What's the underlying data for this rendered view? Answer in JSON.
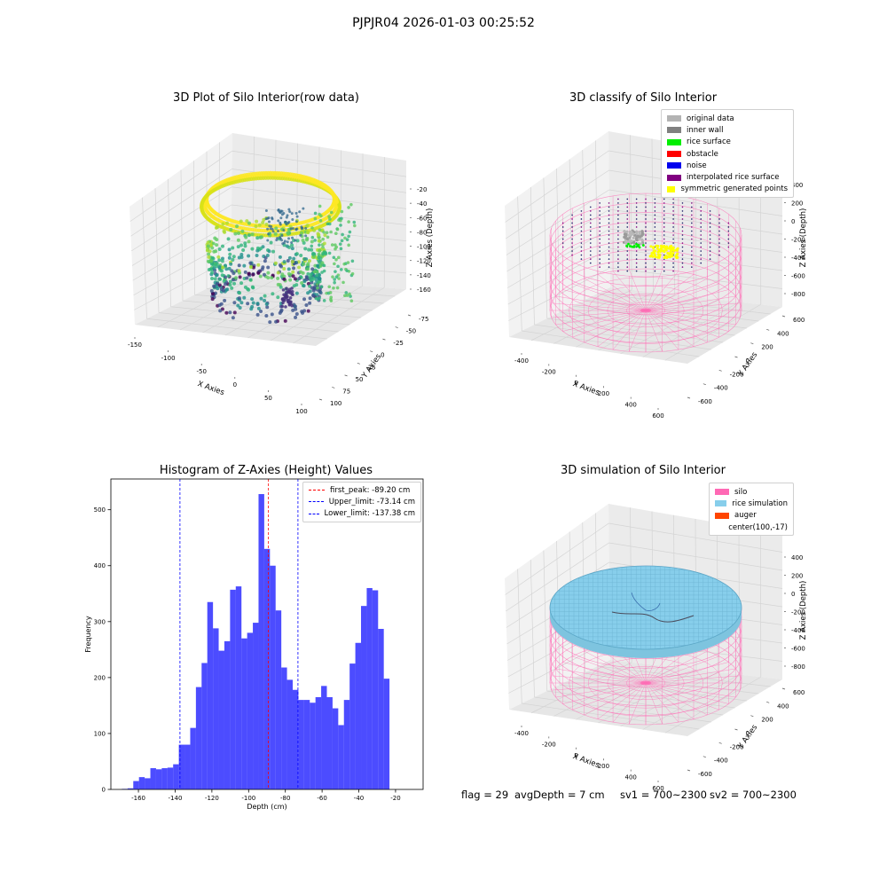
{
  "suptitle": "PJPJR04 2026-01-03 00:25:52",
  "panels": {
    "raw": {
      "title": "3D Plot of Silo Interior(row data)",
      "xlabel": "X Axies",
      "ylabel": "Y Axies",
      "zlabel": "Z Axies (Depth)",
      "xticks": [
        "-150",
        "-100",
        "-50",
        "0",
        "50",
        "100"
      ],
      "yticks": [
        "-75",
        "-50",
        "-25",
        "0",
        "25",
        "50",
        "75",
        "100"
      ],
      "zticks": [
        "-20",
        "-40",
        "-60",
        "-80",
        "-100",
        "-120",
        "-140",
        "-160"
      ]
    },
    "classify": {
      "title": "3D classify of Silo Interior",
      "xlabel": "X Axies",
      "ylabel": "Y Axies",
      "zlabel": "Z Axies (Depth)",
      "xticks": [
        "-400",
        "-200",
        "0",
        "200",
        "400",
        "600"
      ],
      "yticks": [
        "-600",
        "-400",
        "-200",
        "0",
        "200",
        "400",
        "600"
      ],
      "zticks": [
        "400",
        "200",
        "0",
        "-200",
        "-400",
        "-600",
        "-800"
      ],
      "legend": [
        {
          "label": "original data",
          "color": "#b3b3b3"
        },
        {
          "label": "inner wall",
          "color": "#808080"
        },
        {
          "label": "rice surface",
          "color": "#00ee00"
        },
        {
          "label": "obstacle",
          "color": "#ff0000"
        },
        {
          "label": "noise",
          "color": "#0000ee"
        },
        {
          "label": "interpolated rice surface",
          "color": "#800080"
        },
        {
          "label": "symmetric generated points",
          "color": "#ffff00"
        }
      ]
    },
    "simulation": {
      "title": "3D simulation of Silo Interior",
      "xlabel": "X Axies",
      "ylabel": "Y Axies",
      "zlabel": "Z Axies (Depth)",
      "xticks": [
        "-400",
        "-200",
        "0",
        "200",
        "400",
        "600"
      ],
      "yticks": [
        "-600",
        "-400",
        "-200",
        "0",
        "200",
        "400",
        "600"
      ],
      "zticks": [
        "400",
        "200",
        "0",
        "-200",
        "-400",
        "-600",
        "-800"
      ],
      "legend": [
        {
          "label": "silo",
          "color": "#ff69b4"
        },
        {
          "label": "rice simulation",
          "color": "#87ceeb"
        },
        {
          "label": "auger",
          "color": "#ff4500"
        },
        {
          "label": "center(100,-17)",
          "color": ""
        }
      ]
    }
  },
  "chart_data": [
    {
      "type": "histogram",
      "title": "Histogram of Z-Axies (Height) Values",
      "xlabel": "Depth (cm)",
      "ylabel": "Frequency",
      "xlim": [
        -175,
        -5
      ],
      "ylim": [
        0,
        555
      ],
      "xticks": [
        -160,
        -140,
        -120,
        -100,
        -80,
        -60,
        -40,
        -20
      ],
      "yticks": [
        0,
        100,
        200,
        300,
        400,
        500
      ],
      "bar_color": "#0000ff",
      "bins": {
        "start": -169,
        "width": 3.1,
        "counts": [
          1,
          2,
          15,
          22,
          20,
          38,
          36,
          38,
          39,
          45,
          80,
          80,
          110,
          183,
          226,
          335,
          288,
          248,
          265,
          357,
          363,
          270,
          280,
          298,
          528,
          430,
          400,
          320,
          218,
          196,
          178,
          160,
          160,
          155,
          165,
          185,
          165,
          145,
          115,
          160,
          225,
          262,
          328,
          360,
          356,
          287,
          198
        ]
      },
      "vlines": [
        {
          "label": "first_peak: -89.20 cm",
          "x": -89.2,
          "color": "#ff0000"
        },
        {
          "label": "Upper_limit: -73.14 cm",
          "x": -73.14,
          "color": "#0000ff"
        },
        {
          "label": "Lower_limit: -137.38 cm",
          "x": -137.38,
          "color": "#0000ff"
        }
      ]
    }
  ],
  "footer": {
    "flag": "flag = 29",
    "avg_depth": "avgDepth = 7 cm",
    "sv1": "sv1 = 700~2300",
    "sv2": "sv2 = 700~2300"
  }
}
